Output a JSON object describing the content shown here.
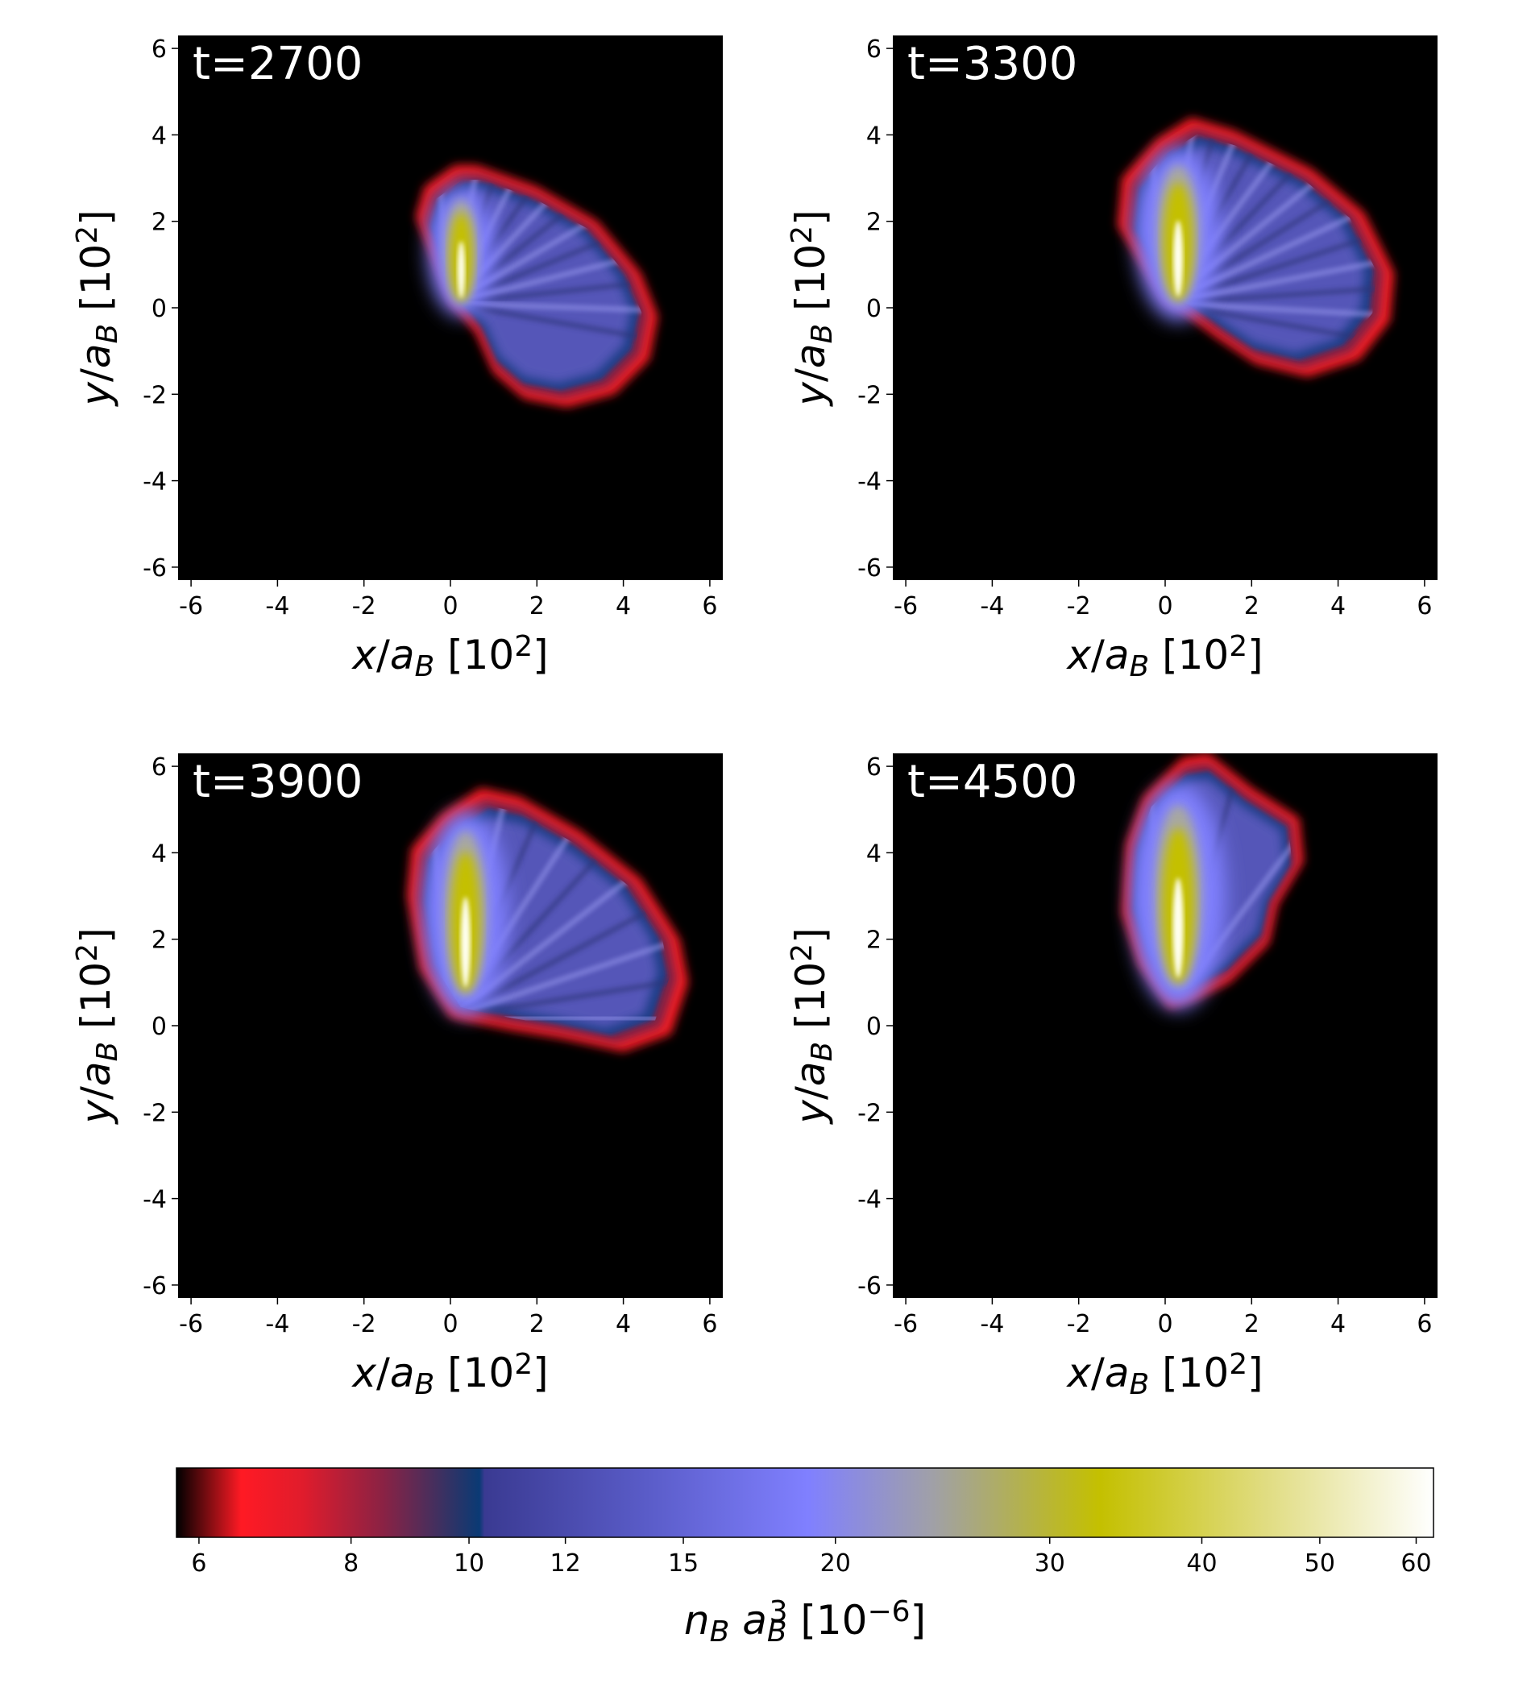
{
  "figure": {
    "xlabel_var": "x",
    "ylabel_var": "y",
    "denom_var": "a",
    "denom_sub": "B",
    "unit_base": "10",
    "unit_exp": "2",
    "unit_open": "[",
    "unit_close": "]"
  },
  "chart_data": [
    {
      "type": "heatmap",
      "title": "t=2700",
      "xlim": [
        -6.3,
        6.3
      ],
      "ylim": [
        -6.3,
        6.3
      ],
      "xticks": [
        -6,
        -4,
        -2,
        0,
        2,
        4,
        6
      ],
      "xtick_labels": [
        "-6",
        "-4",
        "-2",
        "0",
        "2",
        "4",
        "6"
      ],
      "yticks": [
        -6,
        -4,
        -2,
        0,
        2,
        4,
        6
      ],
      "ytick_labels": [
        "-6",
        "-4",
        "-2",
        "0",
        "2",
        "4",
        "6"
      ],
      "plume": {
        "outline": [
          [
            0,
            0.1
          ],
          [
            -0.4,
            1.1
          ],
          [
            -0.8,
            2.1
          ],
          [
            -0.6,
            2.8
          ],
          [
            0.1,
            3.3
          ],
          [
            0.6,
            3.3
          ],
          [
            2,
            2.8
          ],
          [
            3.4,
            2.0
          ],
          [
            4.4,
            0.8
          ],
          [
            4.8,
            -0.2
          ],
          [
            4.6,
            -1.2
          ],
          [
            3.8,
            -2.0
          ],
          [
            2.7,
            -2.3
          ],
          [
            1.7,
            -2.1
          ],
          [
            1.0,
            -1.5
          ],
          [
            0.6,
            -0.6
          ],
          [
            0.2,
            -0.1
          ]
        ],
        "core": {
          "cx": 0.25,
          "cy": 1.3,
          "rx": 0.35,
          "ry": 1.2
        },
        "peak": 60,
        "streaks": 14
      }
    },
    {
      "type": "heatmap",
      "title": "t=3300",
      "xlim": [
        -6.3,
        6.3
      ],
      "ylim": [
        -6.3,
        6.3
      ],
      "xticks": [
        -6,
        -4,
        -2,
        0,
        2,
        4,
        6
      ],
      "xtick_labels": [
        "-6",
        "-4",
        "-2",
        "0",
        "2",
        "4",
        "6"
      ],
      "yticks": [
        -6,
        -4,
        -2,
        0,
        2,
        4,
        6
      ],
      "ytick_labels": [
        "-6",
        "-4",
        "-2",
        "0",
        "2",
        "4",
        "6"
      ],
      "plume": {
        "outline": [
          [
            0,
            0.1
          ],
          [
            -0.5,
            0.9
          ],
          [
            -1.1,
            1.9
          ],
          [
            -1.0,
            3.0
          ],
          [
            -0.2,
            3.9
          ],
          [
            0.6,
            4.4
          ],
          [
            1.6,
            4.1
          ],
          [
            3.4,
            3.2
          ],
          [
            4.6,
            2.2
          ],
          [
            5.3,
            0.8
          ],
          [
            5.2,
            -0.3
          ],
          [
            4.5,
            -1.2
          ],
          [
            3.3,
            -1.6
          ],
          [
            2.1,
            -1.3
          ],
          [
            1.2,
            -0.7
          ],
          [
            0.4,
            -0.1
          ]
        ],
        "core": {
          "cx": 0.3,
          "cy": 1.7,
          "rx": 0.45,
          "ry": 1.6
        },
        "peak": 60,
        "streaks": 16
      }
    },
    {
      "type": "heatmap",
      "title": "t=3900",
      "xlim": [
        -6.3,
        6.3
      ],
      "ylim": [
        -6.3,
        6.3
      ],
      "xticks": [
        -6,
        -4,
        -2,
        0,
        2,
        4,
        6
      ],
      "xtick_labels": [
        "-6",
        "-4",
        "-2",
        "0",
        "2",
        "4",
        "6"
      ],
      "yticks": [
        -6,
        -4,
        -2,
        0,
        2,
        4,
        6
      ],
      "ytick_labels": [
        "-6",
        "-4",
        "-2",
        "0",
        "2",
        "4",
        "6"
      ],
      "plume": {
        "outline": [
          [
            0,
            0.2
          ],
          [
            -0.7,
            1.3
          ],
          [
            -1.0,
            3.0
          ],
          [
            -0.9,
            4.1
          ],
          [
            -0.2,
            4.9
          ],
          [
            0.7,
            5.5
          ],
          [
            1.6,
            5.3
          ],
          [
            3.0,
            4.5
          ],
          [
            4.4,
            3.4
          ],
          [
            5.3,
            2.0
          ],
          [
            5.5,
            1.0
          ],
          [
            5.1,
            -0.2
          ],
          [
            4.0,
            -0.6
          ],
          [
            2.6,
            -0.3
          ],
          [
            1.4,
            -0.1
          ],
          [
            0.4,
            0.1
          ]
        ],
        "core": {
          "cx": 0.35,
          "cy": 2.6,
          "rx": 0.45,
          "ry": 1.9
        },
        "peak": 55,
        "streaks": 12
      }
    },
    {
      "type": "heatmap",
      "title": "t=4500",
      "xlim": [
        -6.3,
        6.3
      ],
      "ylim": [
        -6.3,
        6.3
      ],
      "xticks": [
        -6,
        -4,
        -2,
        0,
        2,
        4,
        6
      ],
      "xtick_labels": [
        "-6",
        "-4",
        "-2",
        "0",
        "2",
        "4",
        "6"
      ],
      "yticks": [
        -6,
        -4,
        -2,
        0,
        2,
        4,
        6
      ],
      "ytick_labels": [
        "-6",
        "-4",
        "-2",
        "0",
        "2",
        "4",
        "6"
      ],
      "plume": {
        "outline": [
          [
            0.1,
            0.4
          ],
          [
            -0.6,
            1.4
          ],
          [
            -1.0,
            2.6
          ],
          [
            -0.9,
            4.2
          ],
          [
            -0.5,
            5.3
          ],
          [
            0.4,
            6.2
          ],
          [
            1.0,
            6.3
          ],
          [
            2.0,
            5.5
          ],
          [
            3.1,
            4.8
          ],
          [
            3.2,
            3.8
          ],
          [
            2.6,
            2.8
          ],
          [
            2.4,
            1.9
          ],
          [
            1.5,
            1.0
          ],
          [
            0.7,
            0.6
          ]
        ],
        "core": {
          "cx": 0.3,
          "cy": 3.0,
          "rx": 0.5,
          "ry": 2.1
        },
        "peak": 55,
        "streaks": 6
      }
    },
    {
      "type": "colorbar",
      "label_var": "n",
      "label_var_sub": "B",
      "label_a": "a",
      "label_a_sub": "B",
      "label_a_sup": "3",
      "label_unit_base": "10",
      "label_unit_exp": "−6",
      "scale": "log",
      "range": [
        5.75,
        62
      ],
      "ticks": [
        6,
        8,
        10,
        12,
        15,
        20,
        30,
        40,
        50,
        60
      ],
      "tick_labels": [
        "6",
        "8",
        "10",
        "12",
        "15",
        "20",
        "30",
        "40",
        "50",
        "60"
      ],
      "colormap": [
        {
          "v": 5.75,
          "c": "#000000"
        },
        {
          "v": 6.5,
          "c": "#ff1a24"
        },
        {
          "v": 7.3,
          "c": "#e01c2c"
        },
        {
          "v": 8.5,
          "c": "#8a2244"
        },
        {
          "v": 10.2,
          "c": "#0a3a74"
        },
        {
          "v": 10.3,
          "c": "#3a3a92"
        },
        {
          "v": 14,
          "c": "#5a5cc8"
        },
        {
          "v": 19,
          "c": "#8080ff"
        },
        {
          "v": 24,
          "c": "#a0a0a8"
        },
        {
          "v": 33,
          "c": "#c4c000"
        },
        {
          "v": 45,
          "c": "#e0dc80"
        },
        {
          "v": 62,
          "c": "#ffffff"
        }
      ]
    }
  ]
}
